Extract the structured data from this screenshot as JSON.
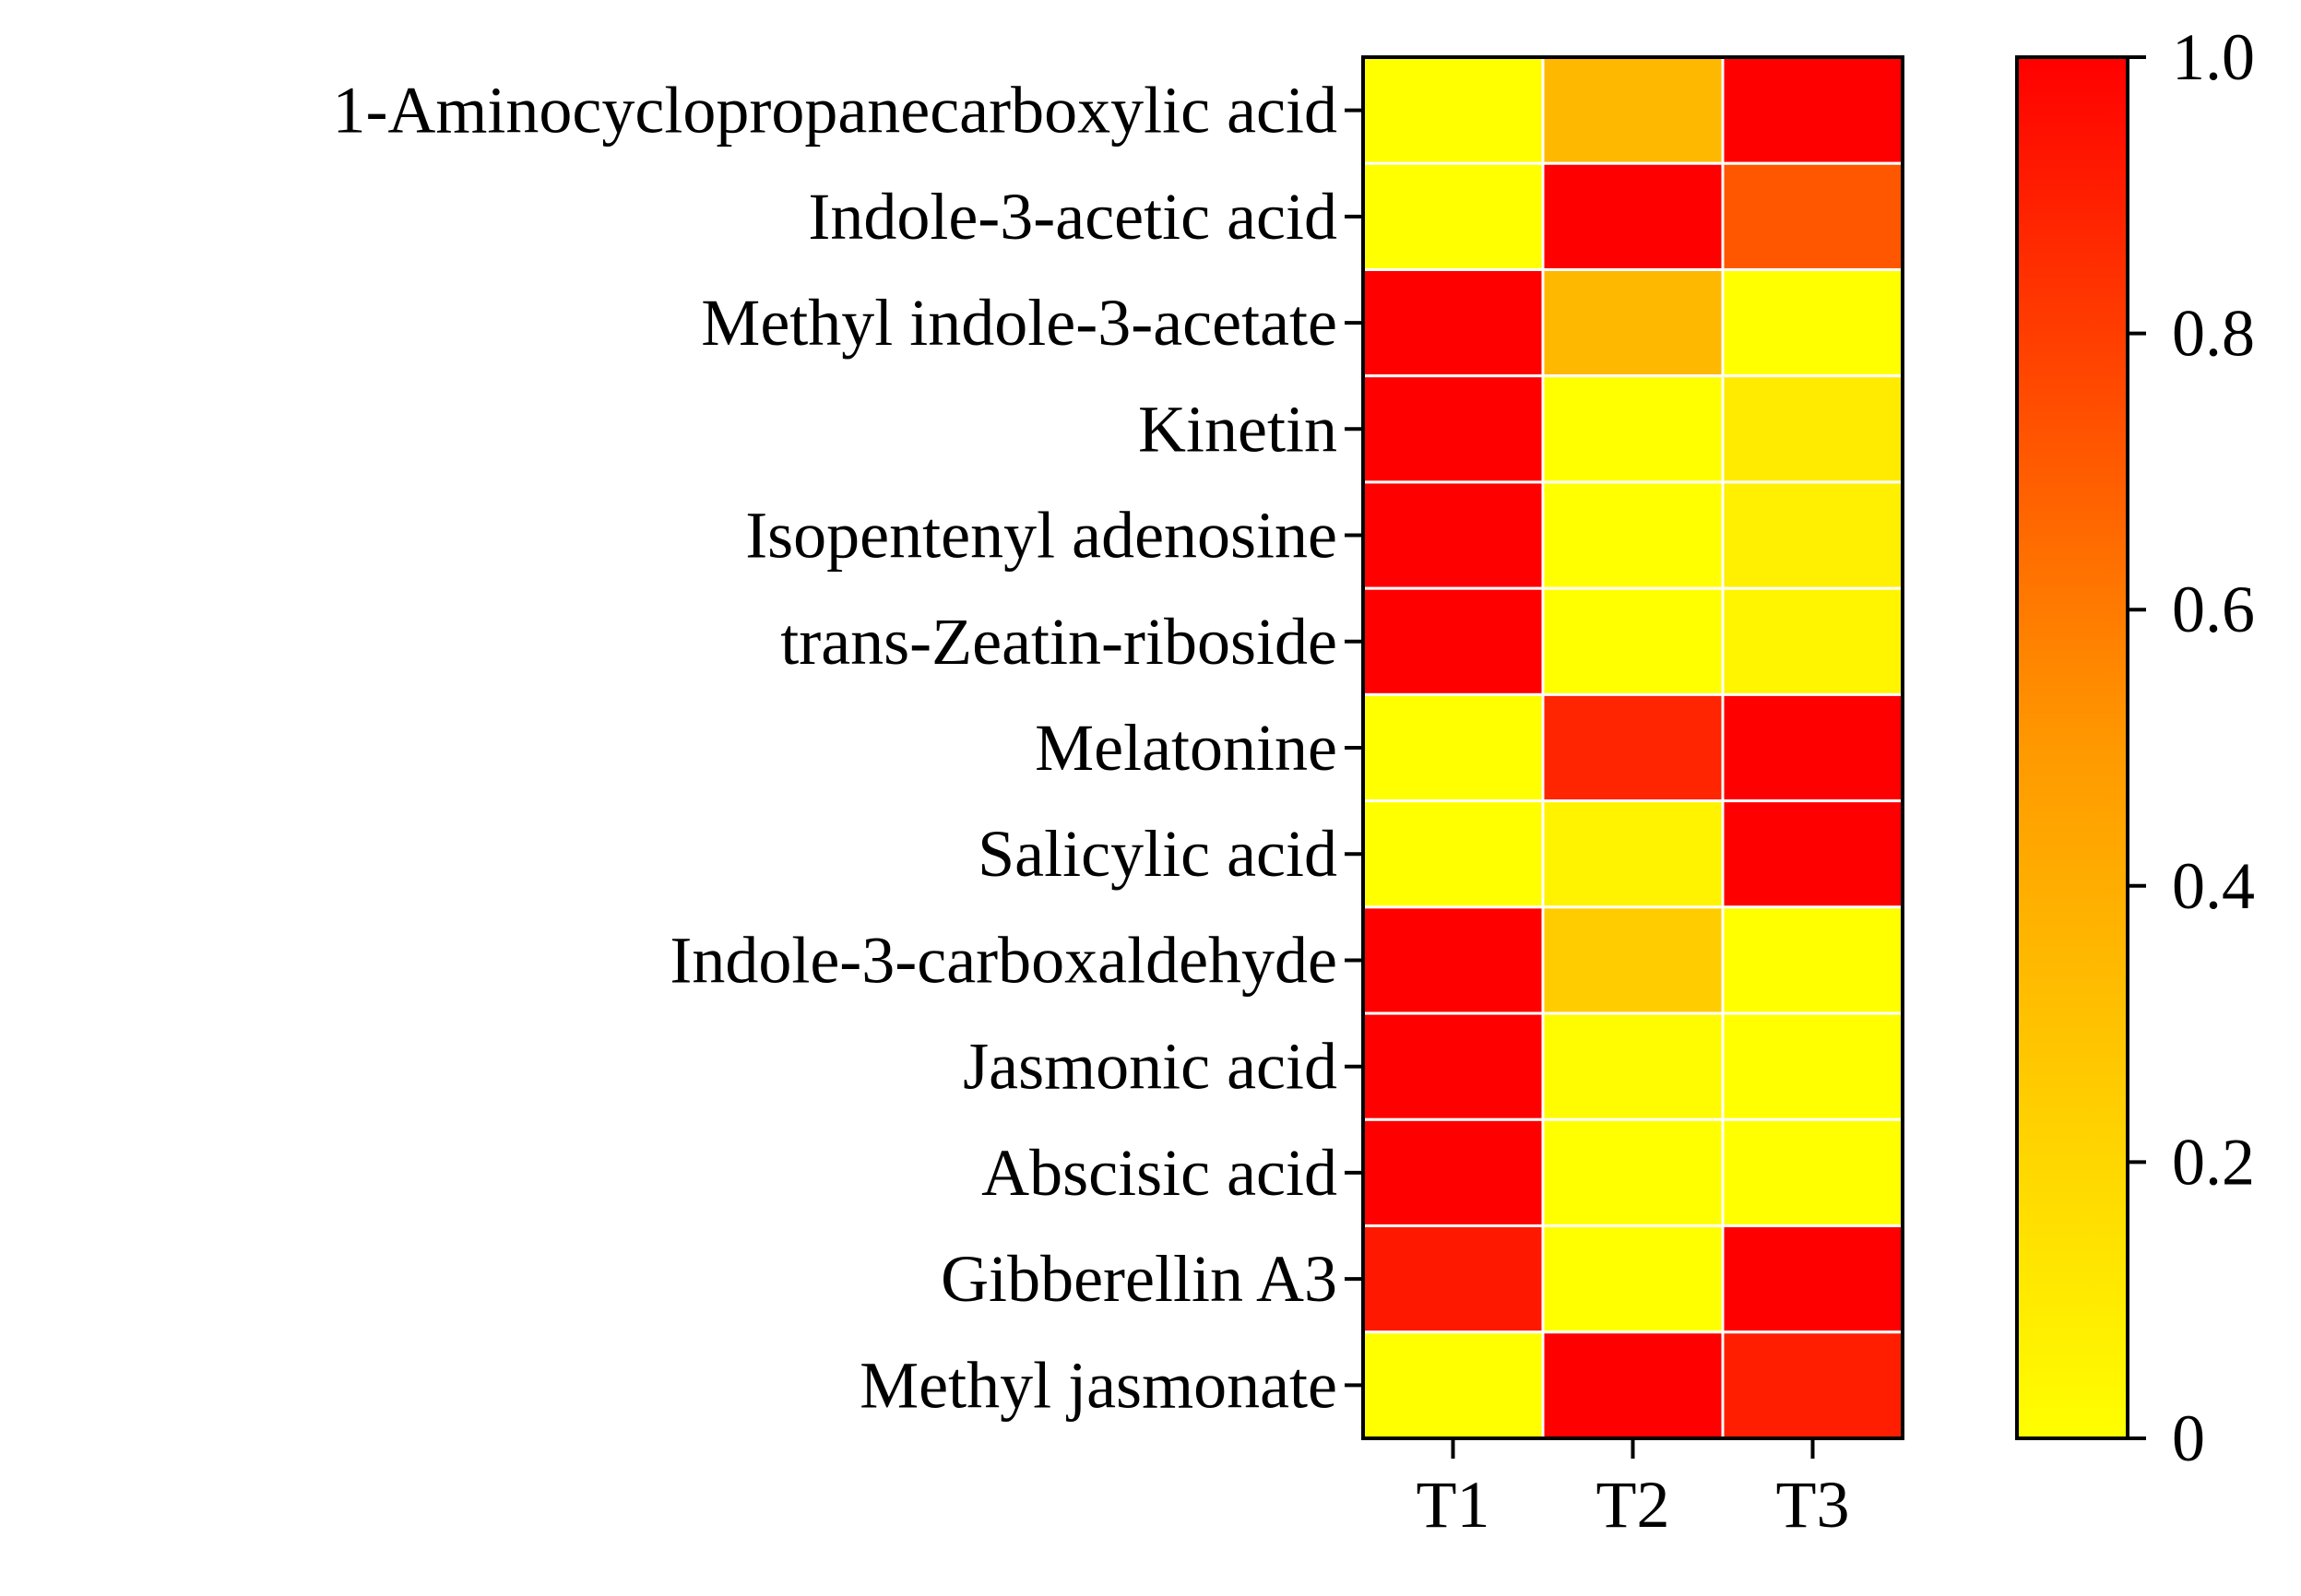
{
  "chart_data": {
    "type": "heatmap",
    "columns": [
      "T1",
      "T2",
      "T3"
    ],
    "rows": [
      "1-Aminocyclopropanecarboxylic acid",
      "Indole-3-acetic acid",
      "Methyl indole-3-acetate",
      "Kinetin",
      "Isopentenyl adenosine",
      "trans-Zeatin-riboside",
      "Melatonine",
      "Salicylic acid",
      "Indole-3-carboxaldehyde",
      "Jasmonic acid",
      "Abscisic acid",
      "Gibberellin A3",
      "Methyl jasmonate"
    ],
    "values": [
      [
        0.0,
        0.35,
        1.0
      ],
      [
        0.0,
        1.0,
        0.72
      ],
      [
        1.0,
        0.35,
        0.0
      ],
      [
        1.0,
        0.0,
        0.1
      ],
      [
        1.0,
        0.0,
        0.08
      ],
      [
        1.0,
        0.0,
        0.05
      ],
      [
        0.0,
        0.88,
        1.0
      ],
      [
        0.0,
        0.06,
        1.0
      ],
      [
        1.0,
        0.25,
        0.0
      ],
      [
        1.0,
        0.02,
        0.0
      ],
      [
        1.0,
        0.0,
        0.0
      ],
      [
        0.92,
        0.0,
        1.0
      ],
      [
        0.0,
        1.0,
        0.9
      ]
    ],
    "colorbar": {
      "min": 0,
      "max": 1.0,
      "ticks": [
        0,
        0.2,
        0.4,
        0.6,
        0.8,
        1.0
      ],
      "tick_labels": [
        "0",
        "0.2",
        "0.4",
        "0.6",
        "0.8",
        "1.0"
      ],
      "colors": [
        "#ffff00",
        "#ff9900",
        "#ff0000"
      ]
    }
  }
}
